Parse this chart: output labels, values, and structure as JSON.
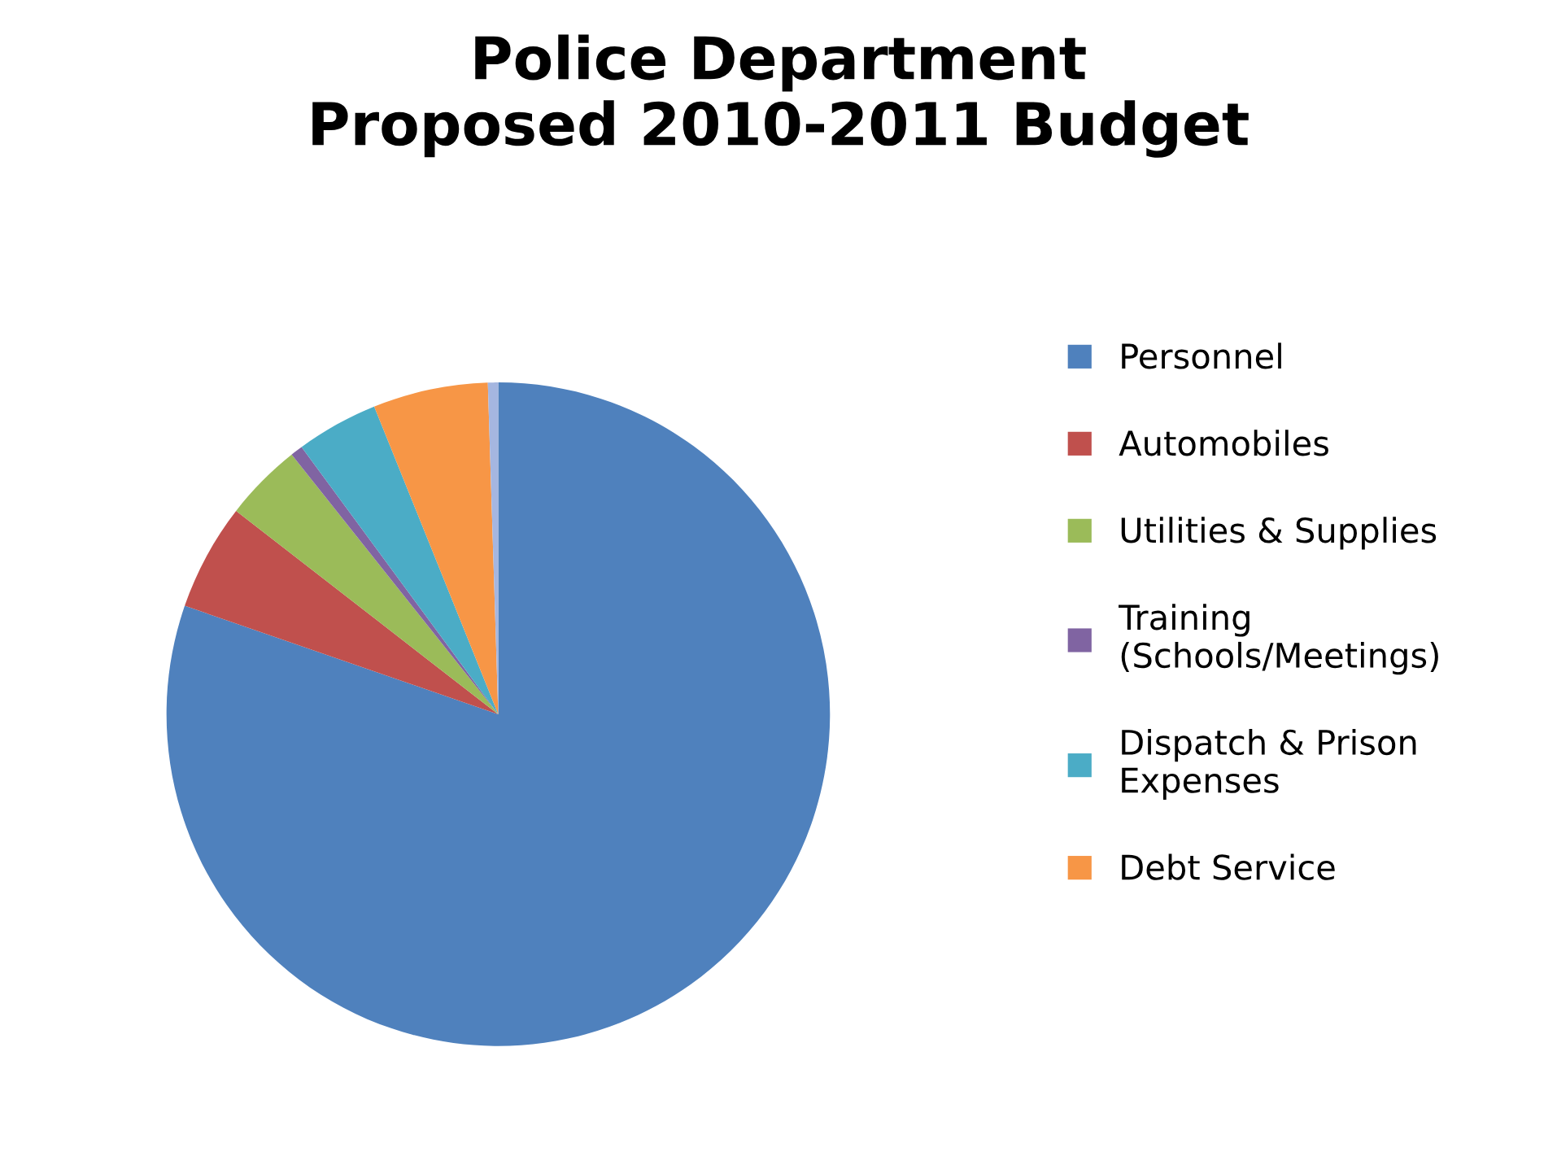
{
  "chart_data": {
    "type": "pie",
    "title": "Police Department\nProposed 2010-2011 Budget",
    "categories": [
      "Personnel",
      "Automobiles",
      "Utilities & Supplies",
      "Training\n(Schools/Meetings)",
      "Dispatch & Prison\nExpenses",
      "Debt Service",
      null
    ],
    "values": [
      80.3,
      5.2,
      3.8,
      0.6,
      4.0,
      5.6,
      0.5
    ],
    "colors": [
      "#4f81bd",
      "#c0504d",
      "#9bbb59",
      "#8064a2",
      "#4bacc6",
      "#f79646",
      "#a5b6e0"
    ],
    "legend": "right"
  }
}
